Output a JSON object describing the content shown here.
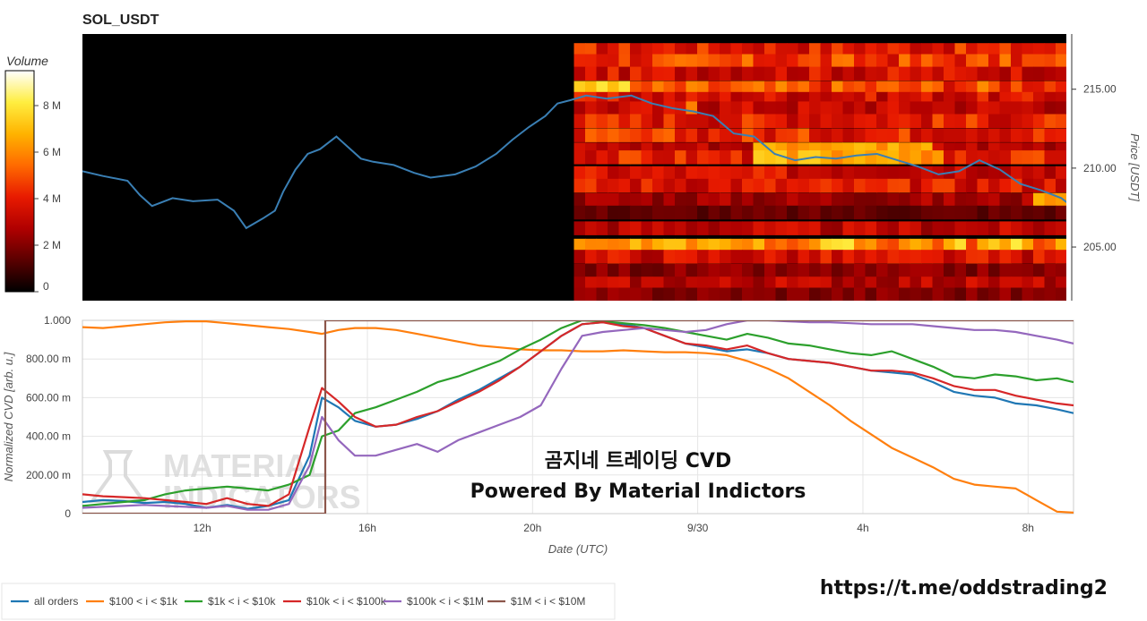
{
  "chart_data": [
    {
      "type": "heatmap",
      "title": "SOL_USDT",
      "ylabel": "Price [USDT]",
      "ylim": [
        201.6,
        218.5
      ],
      "y_ticks": [
        "215.00",
        "210.00",
        "205.00"
      ],
      "y_tick_values": [
        215,
        210,
        205
      ],
      "colorbar": {
        "label": "Volume",
        "ticks": [
          "8 M",
          "6 M",
          "4 M",
          "2 M",
          "0"
        ],
        "tick_values": [
          8,
          6,
          4,
          2,
          0
        ],
        "range": [
          0,
          9.5
        ],
        "colormap": [
          "#000000",
          "#5a0000",
          "#b00000",
          "#e81a00",
          "#ff6a00",
          "#ffb300",
          "#ffee40",
          "#ffffff"
        ]
      },
      "heatmap_start_hour": 21.1,
      "heatmap_bands": [
        {
          "price": 217.5,
          "level": 4.0
        },
        {
          "price": 216.8,
          "level": 4.5
        },
        {
          "price": 216.0,
          "level": 3.5
        },
        {
          "price": 215.1,
          "level": 4.8
        },
        {
          "price": 214.4,
          "level": 3.5
        },
        {
          "price": 213.8,
          "level": 3.2
        },
        {
          "price": 213.0,
          "level": 4.0
        },
        {
          "price": 212.1,
          "level": 4.2
        },
        {
          "price": 211.2,
          "level": 3.0
        },
        {
          "price": 210.7,
          "level": 4.0
        },
        {
          "price": 209.7,
          "level": 3.5
        },
        {
          "price": 208.9,
          "level": 3.8
        },
        {
          "price": 208.0,
          "level": 2.5
        },
        {
          "price": 207.2,
          "level": 1.5
        },
        {
          "price": 206.2,
          "level": 3.0
        },
        {
          "price": 205.1,
          "level": 6.3
        },
        {
          "price": 204.4,
          "level": 3.5
        },
        {
          "price": 203.5,
          "level": 2.0
        },
        {
          "price": 202.7,
          "level": 3.0
        },
        {
          "price": 202.0,
          "level": 2.0
        }
      ],
      "heatmap_hotspots": [
        {
          "price": 215.1,
          "from": 21.1,
          "to": 22.3,
          "level": 7.5
        },
        {
          "price": 213.8,
          "from": 23.6,
          "to": 24.0,
          "level": 6.8
        },
        {
          "price": 211.2,
          "from": 25.4,
          "to": 29.6,
          "level": 6.8
        },
        {
          "price": 210.3,
          "from": 27.8,
          "to": 30.0,
          "level": 6.3
        },
        {
          "price": 208.2,
          "from": 32.2,
          "to": 33.1,
          "level": 6.5
        },
        {
          "price": 205.1,
          "from": 21.3,
          "to": 25.5,
          "level": 6.6
        }
      ],
      "price_series": {
        "x": [
          9.1,
          9.6,
          10.2,
          10.5,
          10.8,
          11.3,
          11.8,
          12.4,
          12.8,
          13.1,
          13.5,
          13.8,
          14.0,
          14.3,
          14.6,
          14.9,
          15.3,
          15.6,
          15.9,
          16.2,
          16.7,
          17.2,
          17.6,
          18.2,
          18.7,
          19.2,
          19.6,
          20.0,
          20.4,
          20.7,
          21.0,
          21.4,
          21.9,
          22.5,
          23.0,
          23.5,
          24.0,
          24.5,
          25.0,
          25.5,
          26.0,
          26.5,
          27.0,
          27.5,
          28.0,
          28.5,
          29.0,
          29.5,
          30.0,
          30.5,
          31.0,
          31.5,
          32.0,
          32.5,
          33.0,
          33.4
        ],
        "y": [
          209.8,
          209.5,
          209.2,
          208.3,
          207.6,
          208.1,
          207.9,
          208.0,
          207.3,
          206.2,
          206.8,
          207.3,
          208.5,
          209.9,
          210.9,
          211.2,
          212.0,
          211.3,
          210.6,
          210.4,
          210.2,
          209.7,
          209.4,
          209.6,
          210.1,
          210.9,
          211.8,
          212.6,
          213.3,
          214.1,
          214.3,
          214.6,
          214.4,
          214.6,
          214.1,
          213.8,
          213.6,
          213.3,
          212.2,
          212.0,
          210.9,
          210.5,
          210.7,
          210.6,
          210.8,
          210.9,
          210.5,
          210.1,
          209.6,
          209.8,
          210.5,
          209.9,
          209.0,
          208.6,
          208.1,
          207.3
        ]
      }
    },
    {
      "type": "line",
      "xlabel": "Date (UTC)",
      "ylabel": "Normalized CVD [arb. u.]",
      "xlim": [
        9.1,
        33.1
      ],
      "ylim": [
        0,
        1000
      ],
      "x_ticks": [
        "12h",
        "16h",
        "20h",
        "9/30",
        "4h",
        "8h"
      ],
      "x_tick_values": [
        12,
        16,
        20,
        24,
        28,
        32
      ],
      "y_ticks": [
        "1.000",
        "800.00 m",
        "600.00 m",
        "400.00 m",
        "200.00 m",
        "0"
      ],
      "y_tick_values": [
        1000,
        800,
        600,
        400,
        200,
        0
      ],
      "x": [
        9.1,
        9.6,
        10.1,
        10.6,
        11.1,
        11.6,
        12.1,
        12.6,
        13.1,
        13.6,
        14.1,
        14.6,
        14.9,
        15.3,
        15.7,
        16.2,
        16.7,
        17.2,
        17.7,
        18.2,
        18.7,
        19.2,
        19.7,
        20.2,
        20.7,
        21.2,
        21.7,
        22.2,
        22.7,
        23.2,
        23.7,
        24.2,
        24.7,
        25.2,
        25.7,
        26.2,
        26.7,
        27.2,
        27.7,
        28.2,
        28.7,
        29.2,
        29.7,
        30.2,
        30.7,
        31.2,
        31.7,
        32.2,
        32.7,
        33.1
      ],
      "series": [
        {
          "name": "all orders",
          "color": "#1f77b4",
          "values": [
            60,
            70,
            65,
            55,
            60,
            50,
            30,
            45,
            25,
            40,
            70,
            300,
            600,
            550,
            480,
            450,
            460,
            490,
            530,
            590,
            640,
            700,
            760,
            840,
            920,
            980,
            990,
            980,
            960,
            920,
            880,
            860,
            840,
            850,
            830,
            800,
            790,
            780,
            760,
            740,
            730,
            720,
            680,
            630,
            610,
            600,
            570,
            560,
            540,
            520
          ]
        },
        {
          "name": "$100 < i < $1k",
          "color": "#ff7f0e",
          "values": [
            965,
            960,
            970,
            980,
            990,
            995,
            995,
            985,
            975,
            965,
            955,
            940,
            930,
            950,
            960,
            960,
            950,
            930,
            910,
            890,
            870,
            860,
            850,
            845,
            845,
            840,
            840,
            845,
            840,
            835,
            835,
            830,
            820,
            790,
            750,
            700,
            630,
            560,
            480,
            410,
            340,
            290,
            240,
            180,
            150,
            140,
            130,
            70,
            10,
            5
          ]
        },
        {
          "name": "$1k < i < $10k",
          "color": "#2ca02c",
          "values": [
            40,
            50,
            60,
            70,
            100,
            120,
            130,
            140,
            130,
            120,
            150,
            200,
            400,
            430,
            520,
            550,
            590,
            630,
            680,
            710,
            750,
            790,
            850,
            900,
            960,
            1000,
            995,
            985,
            975,
            960,
            940,
            920,
            900,
            930,
            910,
            880,
            870,
            850,
            830,
            820,
            840,
            800,
            760,
            710,
            700,
            720,
            710,
            690,
            700,
            680
          ]
        },
        {
          "name": "$10k < i < $100k",
          "color": "#d62728",
          "values": [
            100,
            90,
            85,
            80,
            70,
            60,
            50,
            80,
            50,
            40,
            100,
            450,
            650,
            580,
            500,
            450,
            460,
            500,
            530,
            580,
            630,
            690,
            760,
            840,
            920,
            980,
            990,
            970,
            960,
            920,
            880,
            870,
            850,
            870,
            830,
            800,
            790,
            780,
            760,
            740,
            740,
            730,
            700,
            660,
            640,
            640,
            610,
            590,
            570,
            560
          ]
        },
        {
          "name": "$100k < i < $1M",
          "color": "#9467bd",
          "values": [
            30,
            35,
            40,
            45,
            40,
            35,
            30,
            40,
            20,
            20,
            50,
            250,
            500,
            380,
            300,
            300,
            330,
            360,
            320,
            380,
            420,
            460,
            500,
            560,
            750,
            920,
            940,
            950,
            960,
            950,
            940,
            950,
            980,
            1000,
            1000,
            995,
            990,
            990,
            985,
            980,
            980,
            980,
            970,
            960,
            950,
            950,
            940,
            920,
            900,
            880
          ]
        },
        {
          "name": "$1M < i < $10M",
          "color": "#8c564b",
          "values": [
            0,
            0,
            0,
            0,
            0,
            0,
            0,
            0,
            0,
            0,
            0,
            0,
            0,
            1000,
            1000,
            1000,
            1000,
            1000,
            1000,
            1000,
            1000,
            1000,
            1000,
            1000,
            1000,
            1000,
            1000,
            1000,
            1000,
            1000,
            1000,
            1000,
            1000,
            1000,
            1000,
            1000,
            1000,
            1000,
            1000,
            1000,
            1000,
            1000,
            1000,
            1000,
            1000,
            1000,
            1000,
            1000,
            1000,
            1000
          ]
        }
      ],
      "legend_placement": "bottom",
      "grid": true
    }
  ],
  "annotations": {
    "overlay_line1": "곰지네 트레이딩 CVD",
    "overlay_line2": "Powered By Material Indictors",
    "watermark_line1": "MATERIAL",
    "watermark_line2": "INDICATORS",
    "url": "https://t.me/oddstrading2"
  }
}
